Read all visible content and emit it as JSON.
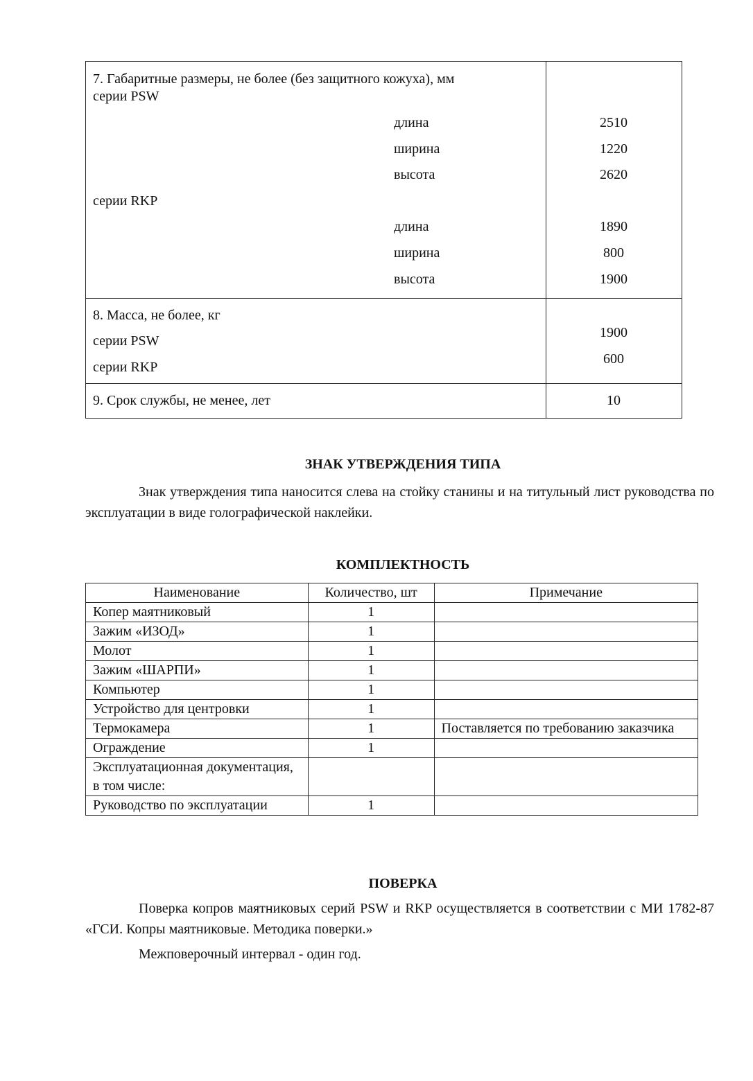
{
  "specs": {
    "row7": {
      "title": "7. Габаритные размеры, не более (без защитного кожуха), мм",
      "psw": {
        "label": "серии PSW",
        "items": [
          {
            "name": "длина",
            "value": "2510"
          },
          {
            "name": "ширина",
            "value": "1220"
          },
          {
            "name": "высота",
            "value": "2620"
          }
        ]
      },
      "rkp": {
        "label": "серии RKP",
        "items": [
          {
            "name": "длина",
            "value": "1890"
          },
          {
            "name": "ширина",
            "value": "800"
          },
          {
            "name": "высота",
            "value": "1900"
          }
        ]
      }
    },
    "row8": {
      "title": "8. Масса, не более, кг",
      "psw_label": "серии PSW",
      "psw_value": "1900",
      "rkp_label": "серии RKP",
      "rkp_value": "600"
    },
    "row9": {
      "title": "9. Срок службы, не менее, лет",
      "value": "10"
    }
  },
  "approval": {
    "heading": "ЗНАК УТВЕРЖДЕНИЯ ТИПА",
    "text": "Знак утверждения типа наносится слева на стойку станины и на титульный лист руководства по эксплуатации в виде голографической наклейки."
  },
  "kit": {
    "heading": "КОМПЛЕКТНОСТЬ",
    "columns": [
      "Наименование",
      "Количество, шт",
      "Примечание"
    ],
    "rows": [
      [
        "Копер маятниковый",
        "1",
        ""
      ],
      [
        "Зажим «ИЗОД»",
        "1",
        ""
      ],
      [
        "Молот",
        "1",
        ""
      ],
      [
        "Зажим «ШАРПИ»",
        "1",
        ""
      ],
      [
        "Компьютер",
        "1",
        ""
      ],
      [
        "Устройство для центровки",
        "1",
        ""
      ],
      [
        "Термокамера",
        "1",
        "Поставляется по требованию заказчика"
      ],
      [
        "Ограждение",
        "1",
        ""
      ],
      [
        "Эксплуатационная документация, в том числе:",
        "",
        ""
      ],
      [
        "Руководство по эксплуатации",
        "1",
        ""
      ]
    ]
  },
  "verification": {
    "heading": "ПОВЕРКА",
    "text": "Поверка копров маятниковых серий PSW и RKP осуществляется в соответствии с МИ 1782-87 «ГСИ. Копры маятниковые. Методика поверки.»",
    "interval": "Межповерочный интервал - один год."
  }
}
